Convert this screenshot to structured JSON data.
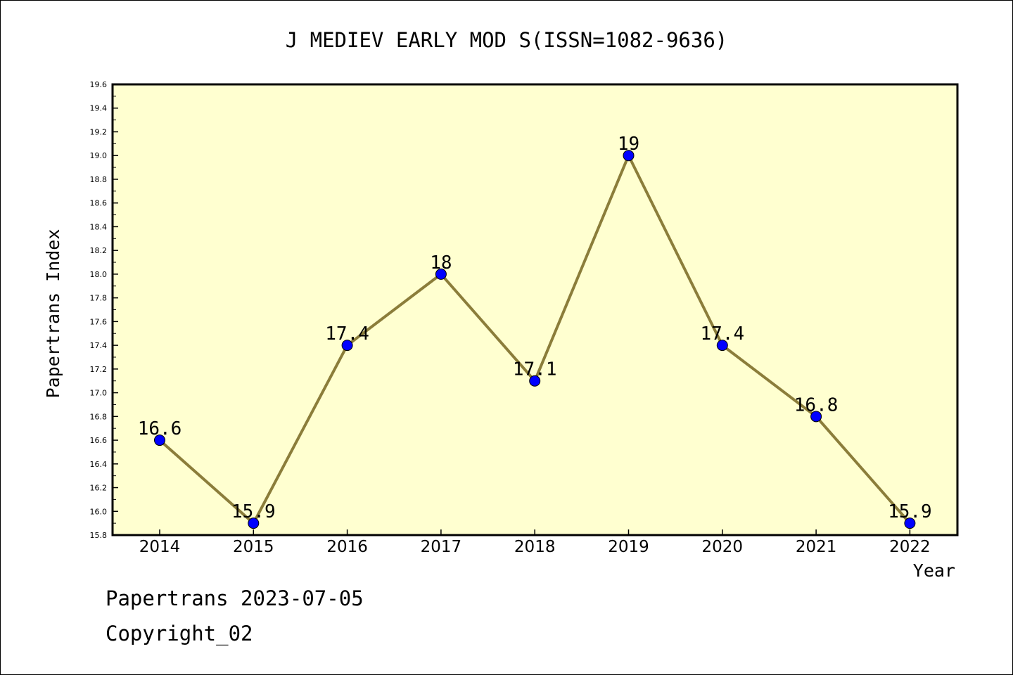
{
  "chart_data": {
    "type": "line",
    "title": "J MEDIEV EARLY MOD S(ISSN=1082-9636)",
    "xlabel": "Year",
    "ylabel": "Papertrans Index",
    "categories": [
      "2014",
      "2015",
      "2016",
      "2017",
      "2018",
      "2019",
      "2020",
      "2021",
      "2022"
    ],
    "series": [
      {
        "values": [
          16.6,
          15.9,
          17.4,
          18.0,
          17.1,
          19.0,
          17.4,
          16.8,
          15.9
        ],
        "data_labels": [
          "16.6",
          "15.9",
          "17.4",
          "18",
          "17.1",
          "19",
          "17.4",
          "16.8",
          "15.9"
        ]
      }
    ],
    "ylim": [
      15.8,
      19.6
    ],
    "yticks": [
      "15.8",
      "16.0",
      "16.2",
      "16.4",
      "16.6",
      "16.8",
      "17.0",
      "17.2",
      "17.4",
      "17.6",
      "17.8",
      "18.0",
      "18.2",
      "18.4",
      "18.6",
      "18.8",
      "19.0",
      "19.2",
      "19.4",
      "19.6"
    ],
    "grid": false,
    "colors": {
      "plot_background": "#ffffd0",
      "line": "#8b7d3a",
      "marker": "#0000ff"
    }
  },
  "footer": {
    "date_line": "Papertrans 2023-07-05",
    "copyright": "Copyright_02"
  }
}
